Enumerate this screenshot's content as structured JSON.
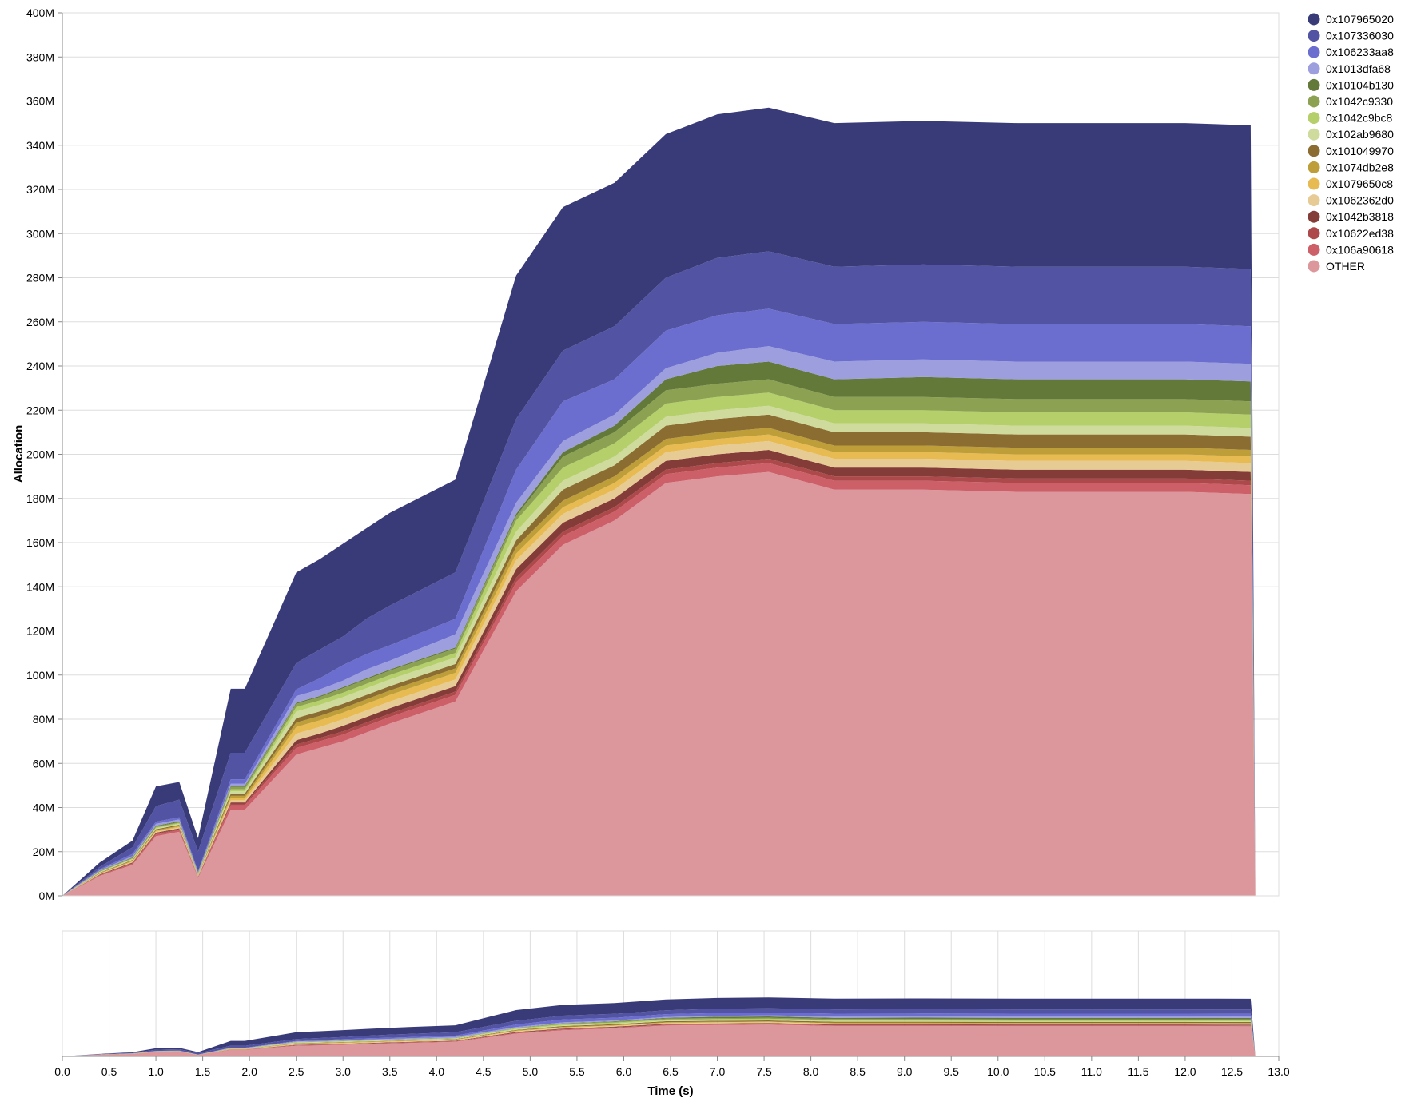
{
  "chart_data": {
    "type": "area",
    "stacked": true,
    "xlabel": "Time (s)",
    "ylabel": "Allocation",
    "xlim": [
      0,
      13
    ],
    "ylim": [
      0,
      400
    ],
    "y_unit_suffix": "M",
    "grid": true,
    "legend_position": "top-right",
    "x_ticks": [
      0.0,
      0.5,
      1.0,
      1.5,
      2.0,
      2.5,
      3.0,
      3.5,
      4.0,
      4.5,
      5.0,
      5.5,
      6.0,
      6.5,
      7.0,
      7.5,
      8.0,
      8.5,
      9.0,
      9.5,
      10.0,
      10.5,
      11.0,
      11.5,
      12.0,
      12.5,
      13.0
    ],
    "x_tick_labels": [
      "0.0",
      "0.5",
      "1.0",
      "1.5",
      "2.0",
      "2.5",
      "3.0",
      "3.5",
      "4.0",
      "4.5",
      "5.0",
      "5.5",
      "6.0",
      "6.5",
      "7.0",
      "7.5",
      "8.0",
      "8.5",
      "9.0",
      "9.5",
      "10.0",
      "10.5",
      "11.0",
      "11.5",
      "12.0",
      "12.5",
      "13.0"
    ],
    "y_ticks": [
      0,
      20,
      40,
      60,
      80,
      100,
      120,
      140,
      160,
      180,
      200,
      220,
      240,
      260,
      280,
      300,
      320,
      340,
      360,
      380,
      400
    ],
    "y_tick_labels": [
      "0M",
      "20M",
      "40M",
      "60M",
      "80M",
      "100M",
      "120M",
      "140M",
      "160M",
      "180M",
      "200M",
      "220M",
      "240M",
      "260M",
      "280M",
      "300M",
      "320M",
      "340M",
      "360M",
      "380M",
      "400M"
    ],
    "x": [
      0.0,
      0.4,
      0.75,
      1.0,
      1.25,
      1.45,
      1.8,
      1.95,
      2.5,
      2.75,
      3.0,
      3.25,
      3.5,
      4.2,
      4.85,
      5.35,
      5.9,
      6.45,
      7.0,
      7.55,
      8.25,
      9.2,
      10.2,
      11.2,
      12.0,
      12.7,
      12.75
    ],
    "series": [
      {
        "name": "OTHER",
        "color": "#dc979c",
        "values": [
          0,
          9,
          14,
          27,
          29,
          8,
          39,
          39,
          64,
          67,
          70,
          74,
          78,
          88,
          138,
          159,
          170,
          187,
          190,
          192,
          184,
          184,
          183,
          183,
          183,
          182,
          0
        ]
      },
      {
        "name": "0x106a90618",
        "color": "#cd5f68",
        "values": [
          0,
          0.3,
          0.5,
          0.8,
          0.8,
          0.3,
          2,
          2,
          3,
          3,
          3,
          3,
          3,
          3,
          4,
          4,
          4,
          4,
          4,
          4,
          4,
          4,
          4,
          4,
          4,
          4,
          0
        ]
      },
      {
        "name": "0x10622ed38",
        "color": "#ad494a",
        "values": [
          0,
          0.2,
          0.3,
          0.4,
          0.4,
          0.2,
          0.8,
          0.8,
          1.5,
          1.5,
          1.5,
          1.5,
          1.5,
          1.5,
          2,
          2,
          2,
          2,
          2,
          2,
          2,
          2,
          2,
          2,
          2,
          2,
          0
        ]
      },
      {
        "name": "0x1042b3818",
        "color": "#843c39",
        "values": [
          0,
          0.2,
          0.3,
          0.4,
          0.4,
          0.2,
          0.5,
          0.5,
          2,
          2,
          2.5,
          2.5,
          2.5,
          2.5,
          4,
          4,
          4,
          4,
          4,
          4,
          4,
          4,
          4,
          4,
          4,
          4,
          0
        ]
      },
      {
        "name": "0x1062362d0",
        "color": "#e7cb94",
        "values": [
          0,
          0.2,
          0.3,
          0.4,
          0.4,
          0.2,
          1,
          1,
          3,
          3,
          3,
          3,
          3,
          3,
          4,
          4,
          4,
          4,
          4,
          4,
          4,
          4,
          4,
          4,
          4,
          4,
          0
        ]
      },
      {
        "name": "0x1079650c8",
        "color": "#e7ba52",
        "values": [
          0,
          0.2,
          0.3,
          0.4,
          0.4,
          0.2,
          1,
          1,
          3,
          3,
          3,
          3,
          3,
          3,
          3,
          3,
          3,
          3,
          3,
          3,
          3,
          3,
          3,
          3,
          3,
          3,
          0
        ]
      },
      {
        "name": "0x1074db2e8",
        "color": "#bd9e39",
        "values": [
          0,
          0.2,
          0.3,
          0.4,
          0.4,
          0.2,
          1,
          1,
          2,
          2,
          2,
          2,
          2,
          2,
          3,
          3,
          3,
          3,
          3,
          3,
          3,
          3,
          3,
          3,
          3,
          3,
          0
        ]
      },
      {
        "name": "0x101049970",
        "color": "#8c6d31",
        "values": [
          0,
          0.2,
          0.3,
          0.4,
          0.4,
          0.2,
          1,
          1,
          2,
          2,
          2,
          2,
          2,
          2,
          3,
          5,
          5,
          6,
          6,
          6,
          6,
          6,
          6,
          6,
          6,
          6,
          0
        ]
      },
      {
        "name": "0x102ab9680",
        "color": "#cedb9c",
        "values": [
          0,
          0.2,
          0.3,
          0.4,
          0.4,
          0.2,
          1,
          1,
          3,
          3,
          3,
          3,
          3,
          3,
          4,
          4,
          4,
          4,
          4,
          4,
          4,
          4,
          4,
          4,
          4,
          4,
          0
        ]
      },
      {
        "name": "0x1042c9bc8",
        "color": "#b5cf6b",
        "values": [
          0,
          0.2,
          0.3,
          0.4,
          0.4,
          0.2,
          1,
          1,
          2,
          2,
          2,
          2,
          2,
          2,
          5,
          6,
          6,
          6,
          6,
          6,
          6,
          6,
          6,
          6,
          6,
          6,
          0
        ]
      },
      {
        "name": "0x1042c9330",
        "color": "#8ca252",
        "values": [
          0,
          0.2,
          0.3,
          0.4,
          0.4,
          0.2,
          1,
          1,
          1.5,
          1.5,
          2,
          2,
          2,
          2,
          2,
          5,
          5,
          6,
          6,
          6,
          6,
          6,
          6,
          6,
          6,
          6,
          0
        ]
      },
      {
        "name": "0x10104b130",
        "color": "#637939",
        "values": [
          0,
          0.2,
          0.3,
          0.4,
          0.4,
          0.2,
          0.5,
          0.5,
          0.5,
          0.5,
          0.5,
          0.5,
          0.5,
          0.5,
          1,
          2,
          3,
          5,
          8,
          8,
          8,
          9,
          9,
          9,
          9,
          9,
          0
        ]
      },
      {
        "name": "0x1013dfa68",
        "color": "#9c9ede",
        "values": [
          0,
          0.3,
          0.5,
          0.8,
          0.8,
          0.3,
          1,
          1,
          3,
          3,
          3,
          4,
          4,
          6,
          5,
          5,
          5,
          5,
          6,
          7,
          8,
          8,
          8,
          8,
          8,
          8,
          0
        ]
      },
      {
        "name": "0x106233aa8",
        "color": "#6b6ecf",
        "values": [
          0,
          0.5,
          1,
          1,
          1,
          0.5,
          2,
          2,
          3,
          5,
          7,
          7,
          7,
          7,
          15,
          18,
          16,
          17,
          17,
          17,
          17,
          17,
          17,
          17,
          17,
          17,
          0
        ]
      },
      {
        "name": "0x107336030",
        "color": "#5254a3",
        "values": [
          0,
          1,
          3,
          7,
          8,
          9,
          12,
          12,
          12,
          13,
          13,
          16,
          18,
          21,
          23,
          23,
          24,
          24,
          26,
          26,
          26,
          26,
          26,
          26,
          26,
          26,
          0
        ]
      },
      {
        "name": "0x107965020",
        "color": "#393b79",
        "values": [
          0,
          2,
          3,
          9,
          8,
          6,
          29,
          29,
          41,
          41,
          42,
          41,
          42,
          42,
          65,
          65,
          65,
          65,
          65,
          65,
          65,
          65,
          65,
          65,
          65,
          65,
          0
        ]
      }
    ]
  }
}
